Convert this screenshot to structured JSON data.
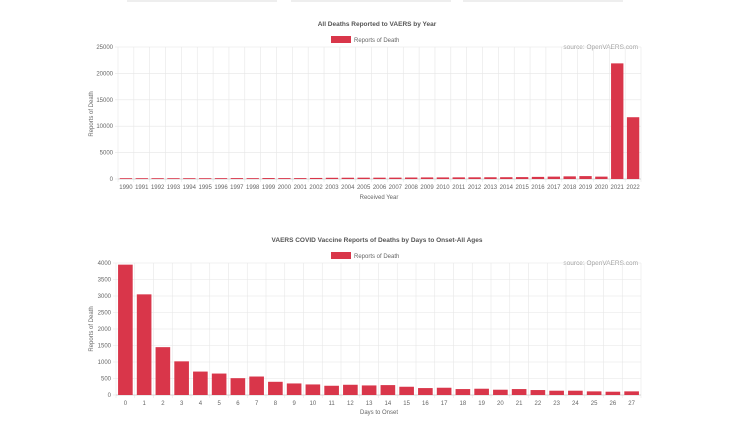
{
  "colors": {
    "bar": "#d9364a",
    "grid": "#e6e6e6",
    "text": "#666666"
  },
  "chart_data": [
    {
      "type": "bar",
      "title": "All Deaths Reported to VAERS by Year",
      "legend": "Reports of Death",
      "source": "source: OpenVAERS.com",
      "xlabel": "Received Year",
      "ylabel": "Reports of Death",
      "ylim": [
        0,
        25000
      ],
      "yticks": [
        0,
        5000,
        10000,
        15000,
        20000,
        25000
      ],
      "categories": [
        "1990",
        "1991",
        "1992",
        "1993",
        "1994",
        "1995",
        "1996",
        "1997",
        "1998",
        "1999",
        "2000",
        "2001",
        "2002",
        "2003",
        "2004",
        "2005",
        "2006",
        "2007",
        "2008",
        "2009",
        "2010",
        "2011",
        "2012",
        "2013",
        "2014",
        "2015",
        "2016",
        "2017",
        "2018",
        "2019",
        "2020",
        "2021",
        "2022"
      ],
      "values": [
        50,
        140,
        130,
        120,
        150,
        150,
        160,
        170,
        160,
        180,
        170,
        170,
        200,
        230,
        240,
        250,
        250,
        260,
        280,
        300,
        300,
        310,
        320,
        330,
        340,
        360,
        400,
        450,
        500,
        550,
        450,
        21900,
        11700
      ],
      "grid": true,
      "legend_position": "top"
    },
    {
      "type": "bar",
      "title": "VAERS COVID Vaccine Reports of Deaths by Days to Onset-All Ages",
      "legend": "Reports of Death",
      "source": "source: OpenVAERS.com",
      "xlabel": "Days to Onset",
      "ylabel": "Reports of Death",
      "ylim": [
        0,
        4000
      ],
      "yticks": [
        0,
        500,
        1000,
        1500,
        2000,
        2500,
        3000,
        3500,
        4000
      ],
      "categories": [
        "0",
        "1",
        "2",
        "3",
        "4",
        "5",
        "6",
        "7",
        "8",
        "9",
        "10",
        "11",
        "12",
        "13",
        "14",
        "15",
        "16",
        "17",
        "18",
        "19",
        "20",
        "21",
        "22",
        "23",
        "24",
        "25",
        "26",
        "27"
      ],
      "values": [
        3950,
        3050,
        1450,
        1020,
        710,
        650,
        510,
        560,
        400,
        350,
        320,
        280,
        310,
        290,
        300,
        250,
        210,
        220,
        180,
        190,
        160,
        180,
        150,
        130,
        130,
        110,
        100,
        110
      ],
      "grid": true,
      "legend_position": "top"
    }
  ]
}
